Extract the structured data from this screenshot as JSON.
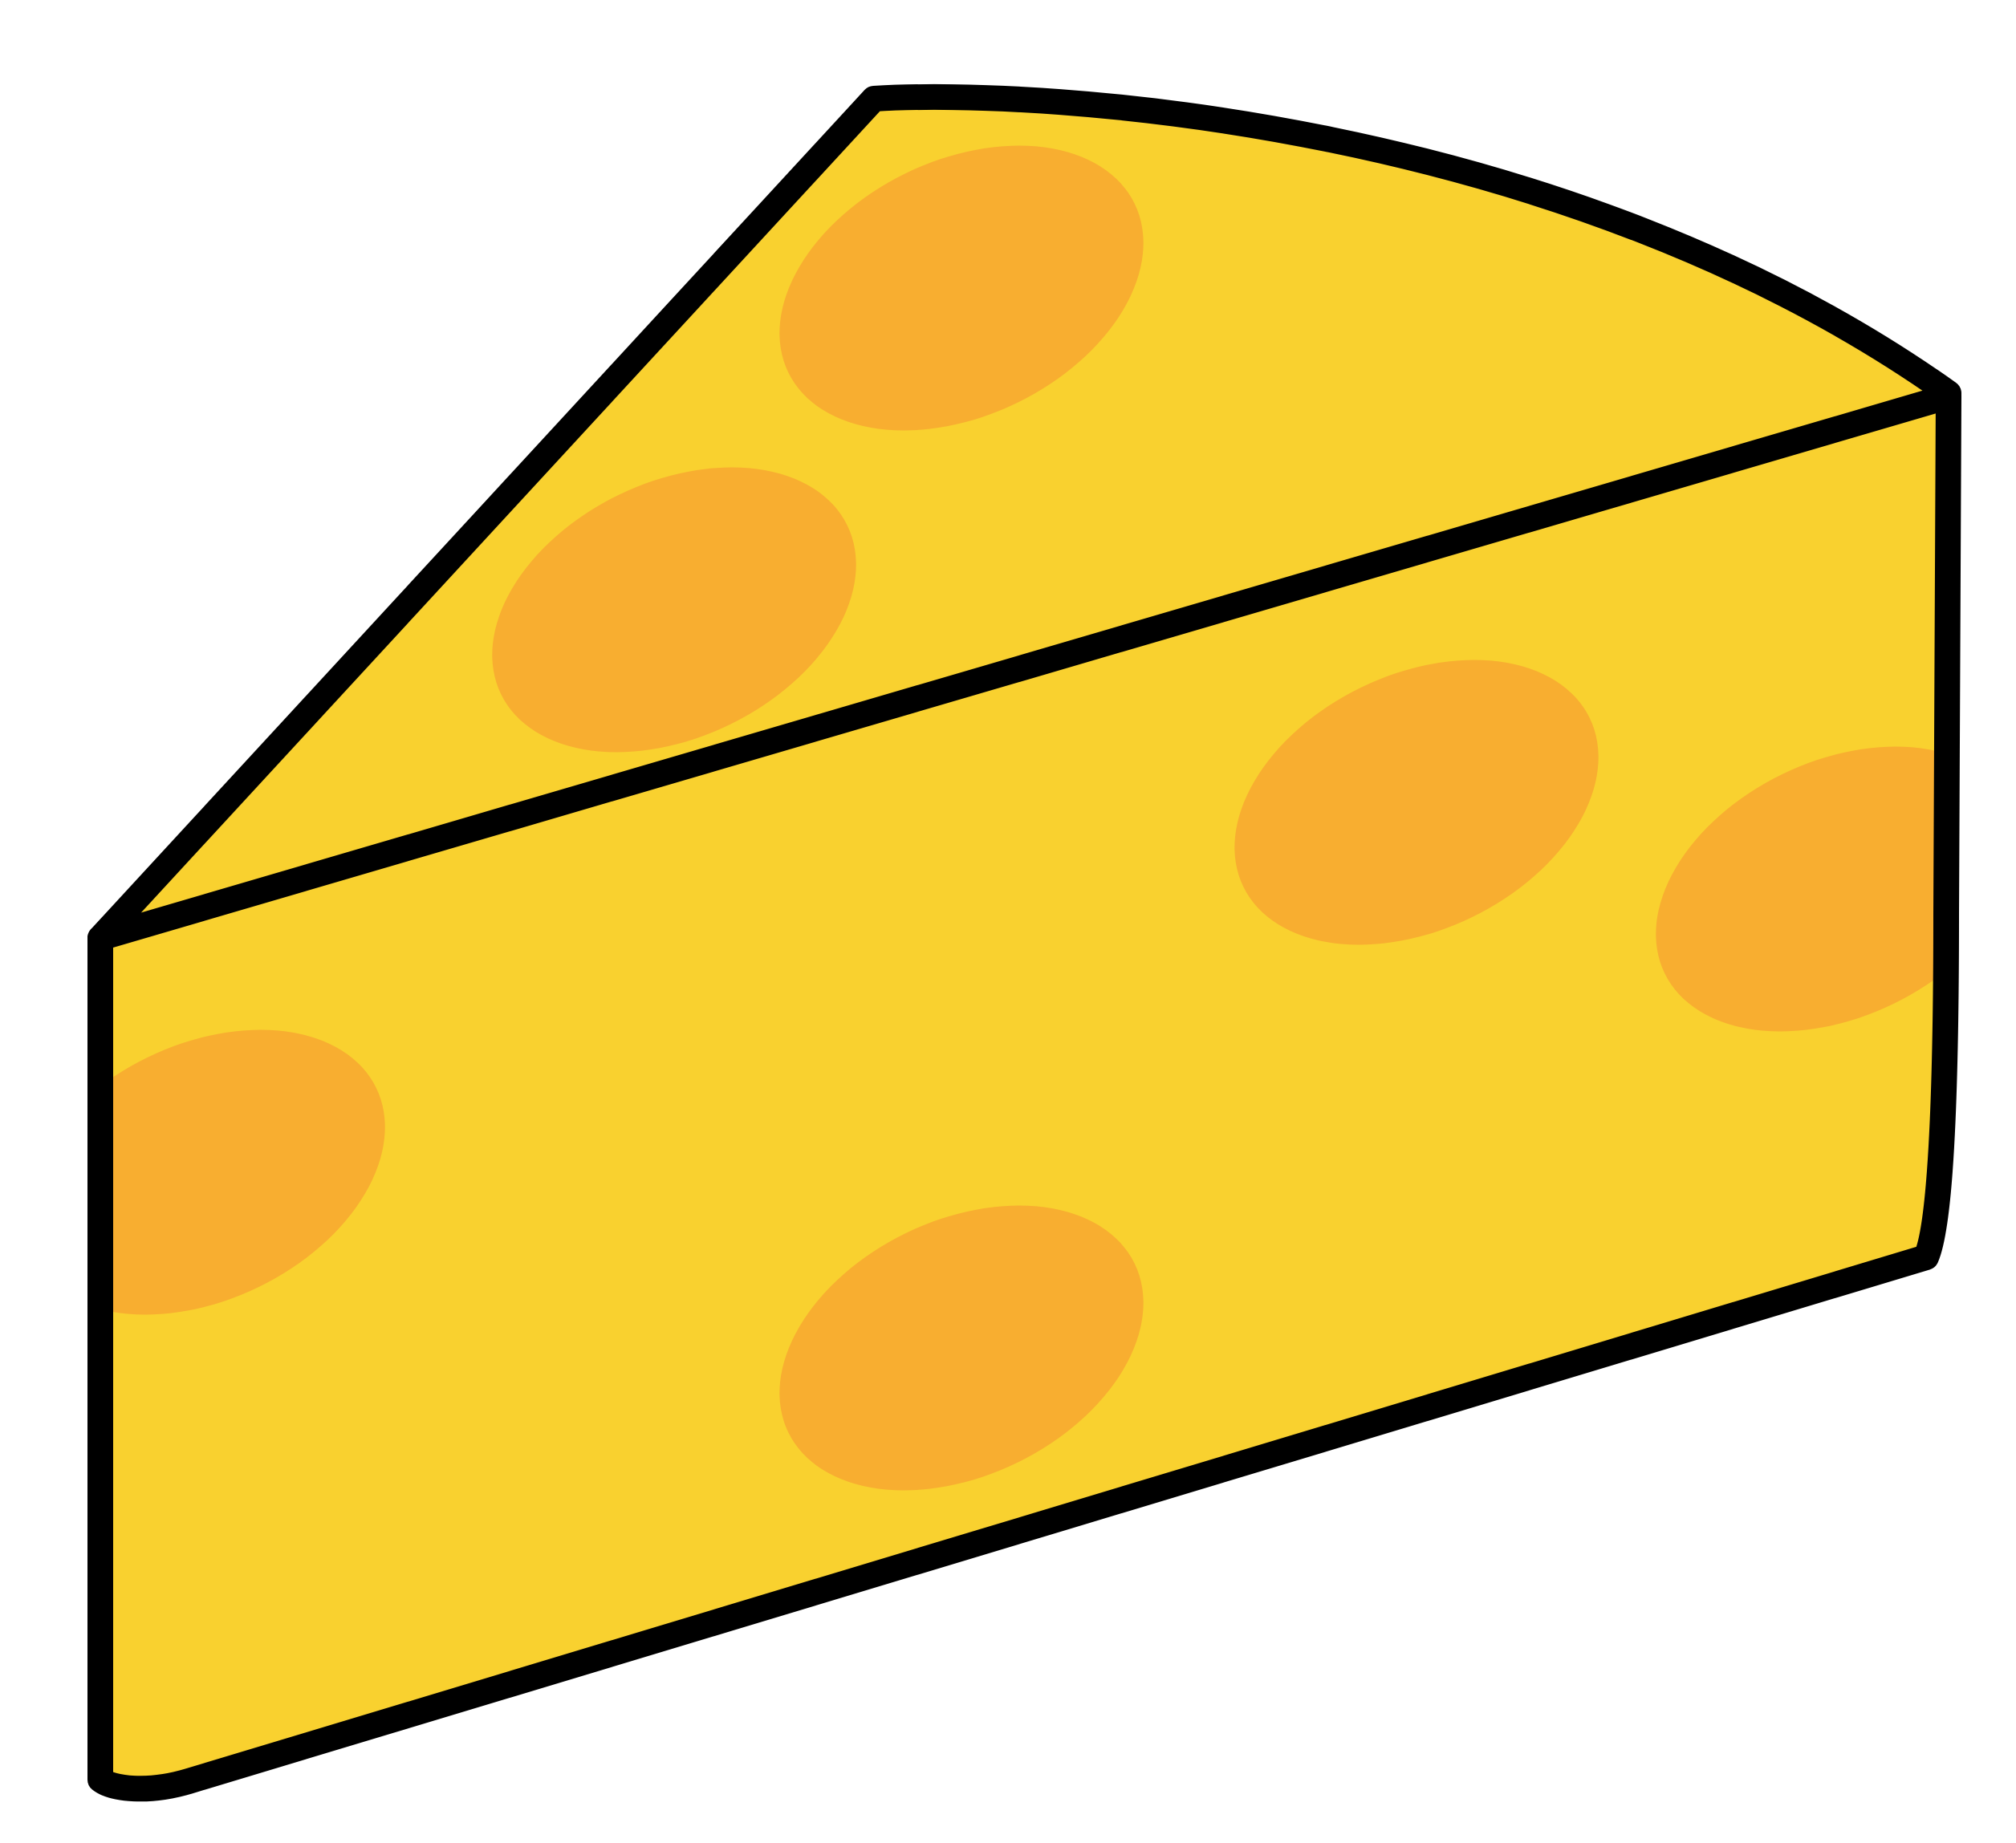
{
  "illustration": {
    "subject": "cheese-wedge-icon",
    "colors": {
      "background": "#FFFFFF",
      "cheese": "#F9D12F",
      "holes": "#F8AE30",
      "outline": "#000000"
    }
  }
}
